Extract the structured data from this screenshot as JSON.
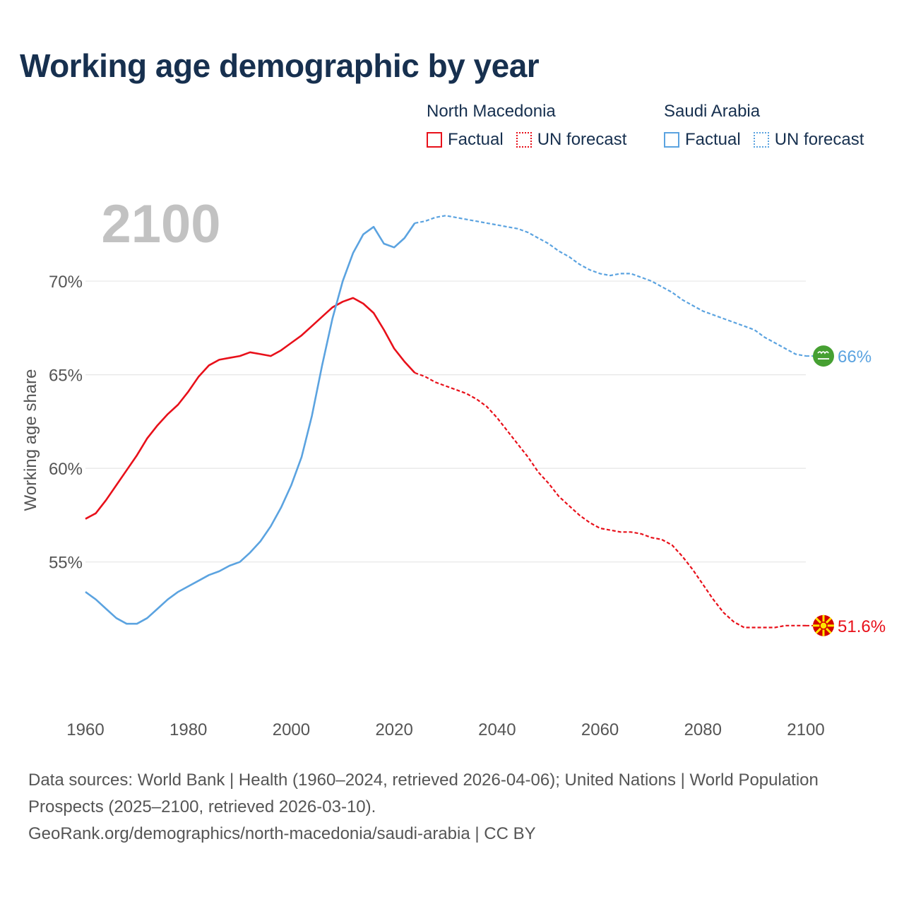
{
  "title": "Working age demographic by year",
  "legend": {
    "groups": [
      {
        "country": "North Macedonia",
        "color": "#e8101a",
        "factual_label": "Factual",
        "forecast_label": "UN forecast"
      },
      {
        "country": "Saudi Arabia",
        "color": "#5ba3e0",
        "factual_label": "Factual",
        "forecast_label": "UN forecast"
      }
    ]
  },
  "year_watermark": "2100",
  "footer": {
    "sources": "Data sources: World Bank | Health (1960–2024, retrieved 2026-04-06); United Nations | World Population Prospects (2025–2100, retrieved 2026-03-10).",
    "credit": "GeoRank.org/demographics/north-macedonia/saudi-arabia | CC BY"
  },
  "chart_data": {
    "type": "line",
    "title": "Working age demographic by year",
    "xlabel": "",
    "ylabel": "Working age share",
    "xlim": [
      1960,
      2100
    ],
    "ylim": [
      48.5,
      74
    ],
    "x_ticks": [
      1960,
      1980,
      2000,
      2020,
      2040,
      2060,
      2080,
      2100
    ],
    "y_ticks": [
      55,
      60,
      65,
      70
    ],
    "y_tick_labels": [
      "55%",
      "60%",
      "65%",
      "70%"
    ],
    "grid": true,
    "factual_end_year": 2024,
    "series": [
      {
        "name": "North Macedonia",
        "color": "#e8101a",
        "end_label": "51.6%",
        "flag": "north-macedonia-flag-icon",
        "points": [
          [
            1960,
            57.3
          ],
          [
            1962,
            57.6
          ],
          [
            1964,
            58.3
          ],
          [
            1966,
            59.1
          ],
          [
            1968,
            59.9
          ],
          [
            1970,
            60.7
          ],
          [
            1972,
            61.6
          ],
          [
            1974,
            62.3
          ],
          [
            1976,
            62.9
          ],
          [
            1978,
            63.4
          ],
          [
            1980,
            64.1
          ],
          [
            1982,
            64.9
          ],
          [
            1984,
            65.5
          ],
          [
            1986,
            65.8
          ],
          [
            1988,
            65.9
          ],
          [
            1990,
            66.0
          ],
          [
            1992,
            66.2
          ],
          [
            1994,
            66.1
          ],
          [
            1996,
            66.0
          ],
          [
            1998,
            66.3
          ],
          [
            2000,
            66.7
          ],
          [
            2002,
            67.1
          ],
          [
            2004,
            67.6
          ],
          [
            2006,
            68.1
          ],
          [
            2008,
            68.6
          ],
          [
            2010,
            68.9
          ],
          [
            2012,
            69.1
          ],
          [
            2014,
            68.8
          ],
          [
            2016,
            68.3
          ],
          [
            2018,
            67.4
          ],
          [
            2020,
            66.4
          ],
          [
            2022,
            65.7
          ],
          [
            2024,
            65.1
          ],
          [
            2026,
            64.9
          ],
          [
            2028,
            64.6
          ],
          [
            2030,
            64.4
          ],
          [
            2032,
            64.2
          ],
          [
            2034,
            64.0
          ],
          [
            2036,
            63.7
          ],
          [
            2038,
            63.3
          ],
          [
            2040,
            62.7
          ],
          [
            2042,
            62.0
          ],
          [
            2044,
            61.3
          ],
          [
            2046,
            60.6
          ],
          [
            2048,
            59.8
          ],
          [
            2050,
            59.2
          ],
          [
            2052,
            58.5
          ],
          [
            2054,
            58.0
          ],
          [
            2056,
            57.5
          ],
          [
            2058,
            57.1
          ],
          [
            2060,
            56.8
          ],
          [
            2062,
            56.7
          ],
          [
            2064,
            56.6
          ],
          [
            2066,
            56.6
          ],
          [
            2068,
            56.5
          ],
          [
            2070,
            56.3
          ],
          [
            2072,
            56.2
          ],
          [
            2074,
            55.9
          ],
          [
            2076,
            55.3
          ],
          [
            2078,
            54.6
          ],
          [
            2080,
            53.8
          ],
          [
            2082,
            53.0
          ],
          [
            2084,
            52.3
          ],
          [
            2086,
            51.8
          ],
          [
            2088,
            51.5
          ],
          [
            2090,
            51.5
          ],
          [
            2092,
            51.5
          ],
          [
            2094,
            51.5
          ],
          [
            2096,
            51.6
          ],
          [
            2098,
            51.6
          ],
          [
            2100,
            51.6
          ]
        ]
      },
      {
        "name": "Saudi Arabia",
        "color": "#5ba3e0",
        "end_label": "66%",
        "flag": "saudi-arabia-flag-icon",
        "points": [
          [
            1960,
            53.4
          ],
          [
            1962,
            53.0
          ],
          [
            1964,
            52.5
          ],
          [
            1966,
            52.0
          ],
          [
            1968,
            51.7
          ],
          [
            1970,
            51.7
          ],
          [
            1972,
            52.0
          ],
          [
            1974,
            52.5
          ],
          [
            1976,
            53.0
          ],
          [
            1978,
            53.4
          ],
          [
            1980,
            53.7
          ],
          [
            1982,
            54.0
          ],
          [
            1984,
            54.3
          ],
          [
            1986,
            54.5
          ],
          [
            1988,
            54.8
          ],
          [
            1990,
            55.0
          ],
          [
            1992,
            55.5
          ],
          [
            1994,
            56.1
          ],
          [
            1996,
            56.9
          ],
          [
            1998,
            57.9
          ],
          [
            2000,
            59.1
          ],
          [
            2002,
            60.6
          ],
          [
            2004,
            62.8
          ],
          [
            2006,
            65.5
          ],
          [
            2008,
            68.0
          ],
          [
            2010,
            70.0
          ],
          [
            2012,
            71.5
          ],
          [
            2014,
            72.5
          ],
          [
            2016,
            72.9
          ],
          [
            2018,
            72.0
          ],
          [
            2020,
            71.8
          ],
          [
            2022,
            72.3
          ],
          [
            2024,
            73.1
          ],
          [
            2026,
            73.2
          ],
          [
            2028,
            73.4
          ],
          [
            2030,
            73.5
          ],
          [
            2032,
            73.4
          ],
          [
            2034,
            73.3
          ],
          [
            2036,
            73.2
          ],
          [
            2038,
            73.1
          ],
          [
            2040,
            73.0
          ],
          [
            2042,
            72.9
          ],
          [
            2044,
            72.8
          ],
          [
            2046,
            72.6
          ],
          [
            2048,
            72.3
          ],
          [
            2050,
            72.0
          ],
          [
            2052,
            71.6
          ],
          [
            2054,
            71.3
          ],
          [
            2056,
            70.9
          ],
          [
            2058,
            70.6
          ],
          [
            2060,
            70.4
          ],
          [
            2062,
            70.3
          ],
          [
            2064,
            70.4
          ],
          [
            2066,
            70.4
          ],
          [
            2068,
            70.2
          ],
          [
            2070,
            70.0
          ],
          [
            2072,
            69.7
          ],
          [
            2074,
            69.4
          ],
          [
            2076,
            69.0
          ],
          [
            2078,
            68.7
          ],
          [
            2080,
            68.4
          ],
          [
            2082,
            68.2
          ],
          [
            2084,
            68.0
          ],
          [
            2086,
            67.8
          ],
          [
            2088,
            67.6
          ],
          [
            2090,
            67.4
          ],
          [
            2092,
            67.0
          ],
          [
            2094,
            66.7
          ],
          [
            2096,
            66.4
          ],
          [
            2098,
            66.1
          ],
          [
            2100,
            66.0
          ]
        ]
      }
    ]
  }
}
